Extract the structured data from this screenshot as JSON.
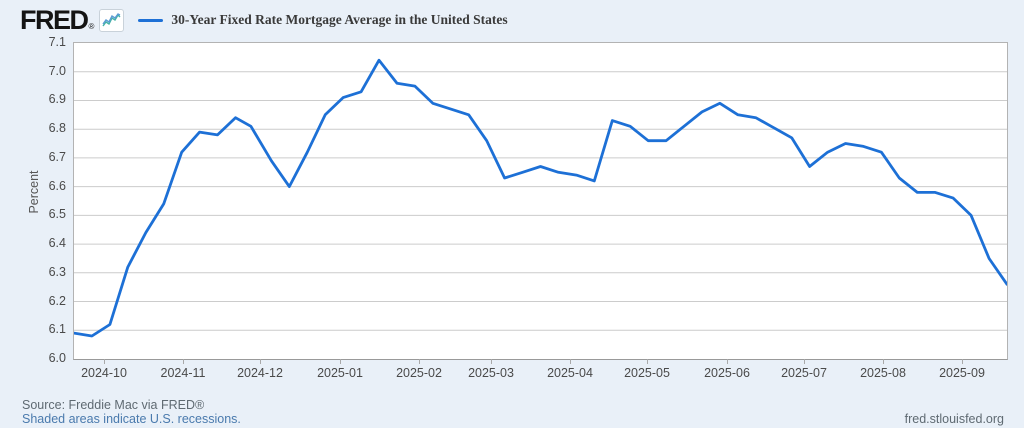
{
  "header": {
    "logo_text": "FRED",
    "logo_registered": "®",
    "legend_label": "30-Year Fixed Rate Mortgage Average in the United States"
  },
  "y_axis": {
    "title": "Percent",
    "ticks": [
      "7.1",
      "7.0",
      "6.9",
      "6.8",
      "6.7",
      "6.6",
      "6.5",
      "6.4",
      "6.3",
      "6.2",
      "6.1",
      "6.0"
    ]
  },
  "x_axis": {
    "ticks": [
      {
        "label": "2024-10",
        "date": "2024-10-01"
      },
      {
        "label": "2024-11",
        "date": "2024-11-01"
      },
      {
        "label": "2024-12",
        "date": "2024-12-01"
      },
      {
        "label": "2025-01",
        "date": "2025-01-01"
      },
      {
        "label": "2025-02",
        "date": "2025-02-01"
      },
      {
        "label": "2025-03",
        "date": "2025-03-01"
      },
      {
        "label": "2025-04",
        "date": "2025-04-01"
      },
      {
        "label": "2025-05",
        "date": "2025-05-01"
      },
      {
        "label": "2025-06",
        "date": "2025-06-01"
      },
      {
        "label": "2025-07",
        "date": "2025-07-01"
      },
      {
        "label": "2025-08",
        "date": "2025-08-01"
      },
      {
        "label": "2025-09",
        "date": "2025-09-01"
      }
    ]
  },
  "footer": {
    "source": "Source: Freddie Mac via FRED®",
    "recessions_note": "Shaded areas indicate U.S. recessions.",
    "site": "fred.stlouisfed.org"
  },
  "colors": {
    "page_background": "#e9f0f8",
    "plot_background": "#ffffff",
    "gridline": "#cccccc",
    "plot_border": "#b3b3b3",
    "series_line": "#1d70d6",
    "axis_text": "#4a4a4a",
    "link_text": "#4a7aad",
    "source_text": "#5f6a72",
    "logo_icon_blue": "#5b9bd5",
    "logo_icon_teal": "#43b3a5"
  },
  "chart_data": {
    "type": "line",
    "title": "30-Year Fixed Rate Mortgage Average in the United States",
    "xlabel": "",
    "ylabel": "Percent",
    "ylim": [
      6.0,
      7.1
    ],
    "y_tick_step": 0.1,
    "grid": true,
    "legend_position": "top",
    "x_tick_labels": [
      "2024-10",
      "2024-11",
      "2024-12",
      "2025-01",
      "2025-02",
      "2025-03",
      "2025-04",
      "2025-05",
      "2025-06",
      "2025-07",
      "2025-08",
      "2025-09"
    ],
    "series": [
      {
        "name": "30-Year Fixed Rate Mortgage Average in the United States",
        "unit": "Percent",
        "x": [
          "2024-09-19",
          "2024-09-26",
          "2024-10-03",
          "2024-10-10",
          "2024-10-17",
          "2024-10-24",
          "2024-10-31",
          "2024-11-07",
          "2024-11-14",
          "2024-11-21",
          "2024-11-27",
          "2024-12-05",
          "2024-12-12",
          "2024-12-19",
          "2024-12-26",
          "2025-01-02",
          "2025-01-09",
          "2025-01-16",
          "2025-01-23",
          "2025-01-30",
          "2025-02-06",
          "2025-02-13",
          "2025-02-20",
          "2025-02-27",
          "2025-03-06",
          "2025-03-13",
          "2025-03-20",
          "2025-03-27",
          "2025-04-03",
          "2025-04-10",
          "2025-04-17",
          "2025-04-24",
          "2025-05-01",
          "2025-05-08",
          "2025-05-15",
          "2025-05-22",
          "2025-05-29",
          "2025-06-05",
          "2025-06-12",
          "2025-06-18",
          "2025-06-26",
          "2025-07-03",
          "2025-07-10",
          "2025-07-17",
          "2025-07-24",
          "2025-07-31",
          "2025-08-07",
          "2025-08-14",
          "2025-08-21",
          "2025-08-28",
          "2025-09-04",
          "2025-09-11",
          "2025-09-18"
        ],
        "values": [
          6.09,
          6.08,
          6.12,
          6.32,
          6.44,
          6.54,
          6.72,
          6.79,
          6.78,
          6.84,
          6.81,
          6.69,
          6.6,
          6.72,
          6.85,
          6.91,
          6.93,
          7.04,
          6.96,
          6.95,
          6.89,
          6.87,
          6.85,
          6.76,
          6.63,
          6.65,
          6.67,
          6.65,
          6.64,
          6.62,
          6.83,
          6.81,
          6.76,
          6.76,
          6.81,
          6.86,
          6.89,
          6.85,
          6.84,
          6.81,
          6.77,
          6.67,
          6.72,
          6.75,
          6.74,
          6.72,
          6.63,
          6.58,
          6.58,
          6.56,
          6.5,
          6.35,
          6.26
        ]
      }
    ]
  }
}
